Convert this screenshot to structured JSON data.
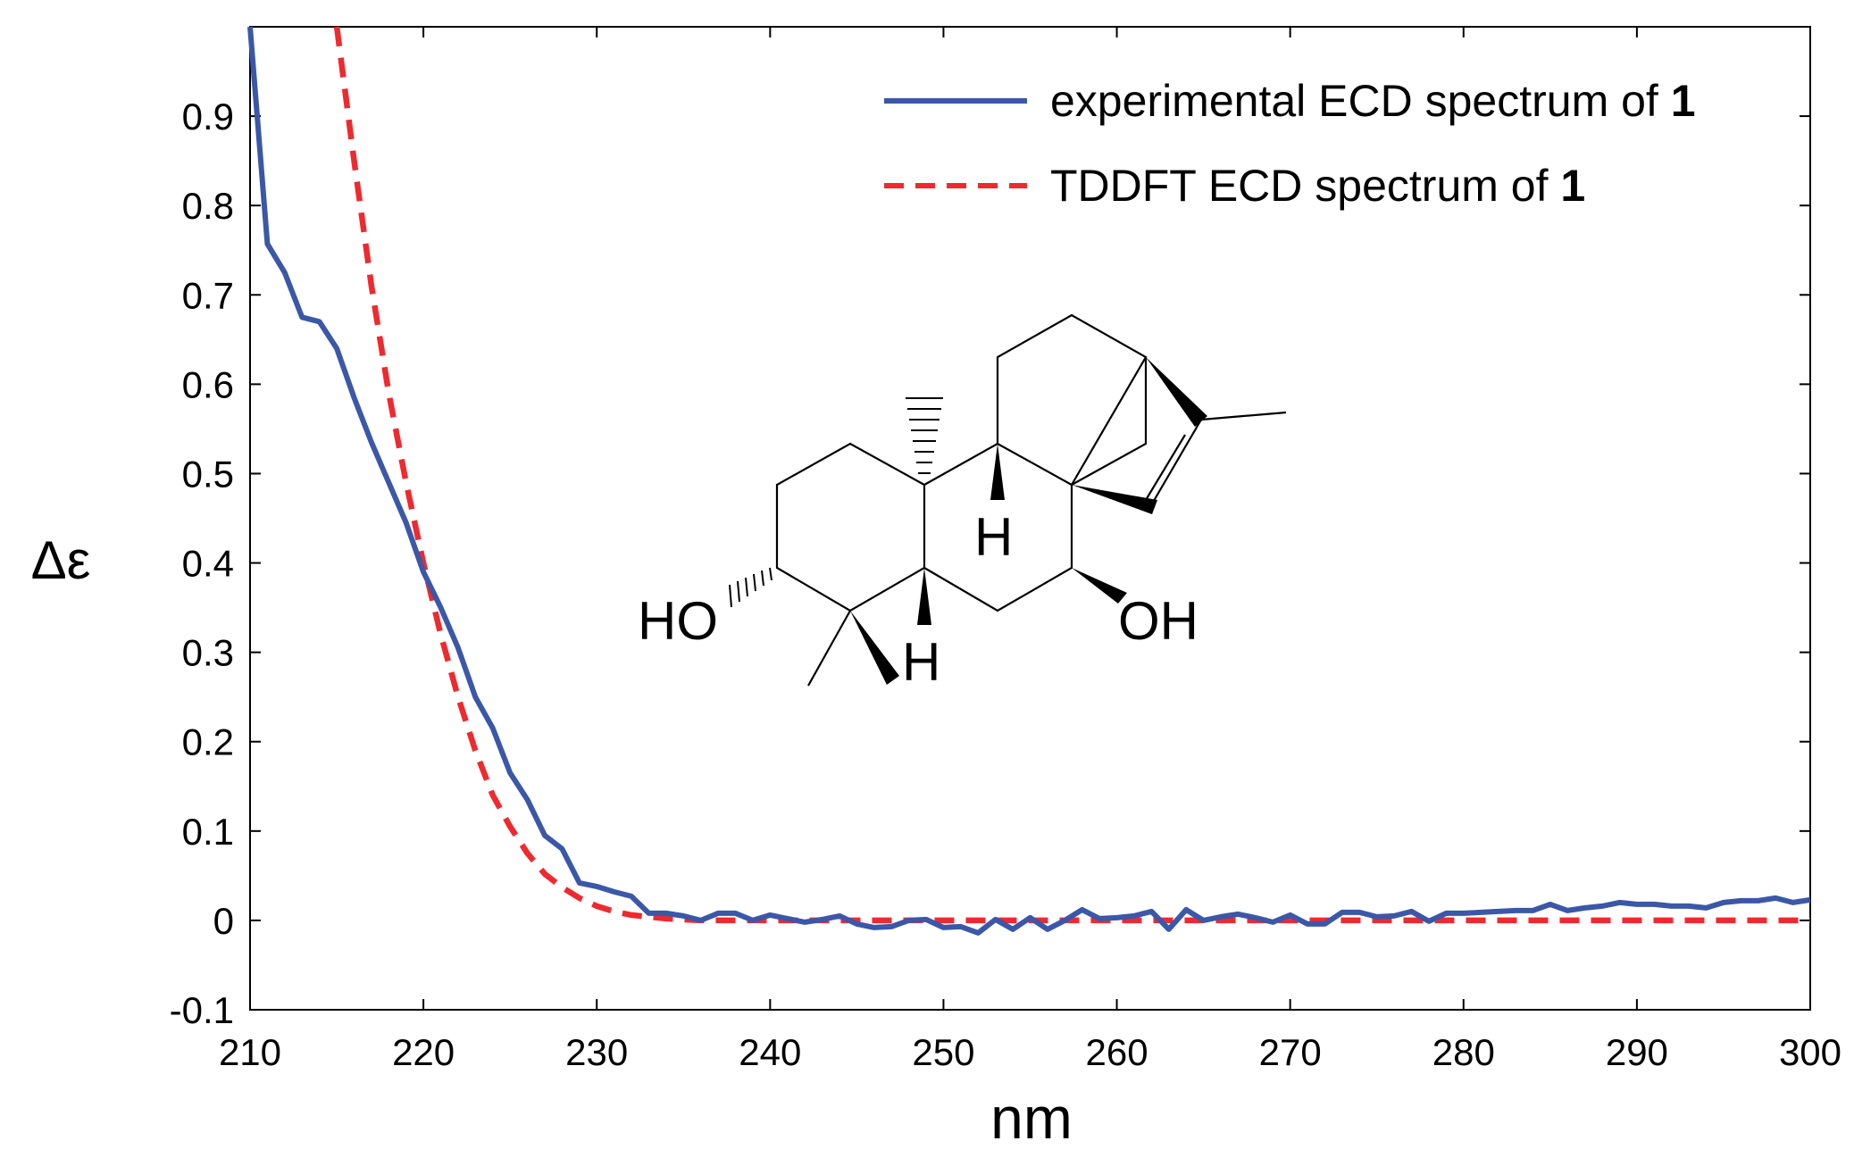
{
  "chart_data": {
    "type": "line",
    "xlabel": "nm",
    "ylabel": "Δε",
    "xlim": [
      210,
      300
    ],
    "ylim": [
      -0.1,
      1.0
    ],
    "x_ticks": [
      "210",
      "220",
      "230",
      "240",
      "250",
      "260",
      "270",
      "280",
      "290",
      "300"
    ],
    "y_ticks": [
      "-0.1",
      "0",
      "0.1",
      "0.2",
      "0.3",
      "0.4",
      "0.5",
      "0.6",
      "0.7",
      "0.8",
      "0.9"
    ],
    "grid": false,
    "legend_position": "top-right",
    "series": [
      {
        "name": "experimental ECD spectrum of 1",
        "name_prefix": "experimental ECD spectrum of ",
        "name_bold": "1",
        "color": "#3b57a8",
        "line_style": "solid",
        "x": [
          210,
          211,
          212,
          213,
          214,
          215,
          216,
          217,
          218,
          219,
          220,
          221,
          222,
          223,
          224,
          225,
          226,
          227,
          228,
          229,
          230,
          231,
          232,
          233,
          234,
          235,
          236,
          237,
          238,
          239,
          240,
          241,
          242,
          243,
          244,
          245,
          246,
          247,
          248,
          249,
          250,
          251,
          252,
          253,
          254,
          255,
          256,
          257,
          258,
          259,
          260,
          261,
          262,
          263,
          264,
          265,
          266,
          267,
          268,
          269,
          270,
          271,
          272,
          273,
          274,
          275,
          276,
          277,
          278,
          279,
          280,
          281,
          282,
          283,
          284,
          285,
          286,
          287,
          288,
          289,
          290,
          291,
          292,
          293,
          294,
          295,
          296,
          297,
          298,
          299,
          300
        ],
        "y": [
          1.0,
          0.757,
          0.725,
          0.675,
          0.67,
          0.64,
          0.585,
          0.535,
          0.49,
          0.445,
          0.39,
          0.35,
          0.305,
          0.25,
          0.215,
          0.165,
          0.135,
          0.095,
          0.08,
          0.042,
          0.038,
          0.032,
          0.027,
          0.008,
          0.008,
          0.005,
          0.0,
          0.008,
          0.008,
          0.0,
          0.006,
          0.002,
          -0.002,
          0.001,
          0.005,
          -0.004,
          -0.008,
          -0.007,
          0.0,
          0.001,
          -0.008,
          -0.007,
          -0.014,
          0.001,
          -0.01,
          0.003,
          -0.01,
          0.0,
          0.012,
          0.002,
          0.003,
          0.005,
          0.01,
          -0.01,
          0.012,
          0.0,
          0.004,
          0.007,
          0.003,
          -0.002,
          0.006,
          -0.004,
          -0.004,
          0.009,
          0.009,
          0.004,
          0.005,
          0.01,
          -0.001,
          0.008,
          0.008,
          0.009,
          0.01,
          0.011,
          0.011,
          0.018,
          0.011,
          0.014,
          0.016,
          0.02,
          0.018,
          0.018,
          0.016,
          0.016,
          0.014,
          0.02,
          0.022,
          0.022,
          0.025,
          0.02,
          0.023
        ]
      },
      {
        "name": "TDDFT ECD spectrum of 1",
        "name_prefix": "TDDFT ECD spectrum of ",
        "name_bold": "1",
        "color": "#ee2a2f",
        "line_style": "dashed",
        "x": [
          215,
          216,
          217,
          218,
          219,
          220,
          221,
          222,
          223,
          224,
          225,
          226,
          227,
          228,
          229,
          230,
          231,
          232,
          233,
          234,
          235,
          236,
          238,
          240,
          245,
          250,
          255,
          260,
          265,
          270,
          275,
          280,
          285,
          290,
          295,
          300
        ],
        "y": [
          1.0,
          0.85,
          0.71,
          0.59,
          0.49,
          0.4,
          0.32,
          0.25,
          0.19,
          0.14,
          0.105,
          0.075,
          0.052,
          0.037,
          0.025,
          0.016,
          0.01,
          0.006,
          0.004,
          0.002,
          0.001,
          0.0,
          0.0,
          0.0,
          0.0,
          0.0,
          0.0,
          0.0,
          0.0,
          0.0,
          0.0,
          0.0,
          0.0,
          0.0,
          0.0,
          0.0
        ]
      }
    ],
    "inset_labels": {
      "ho": "HO",
      "oh": "OH",
      "h_top": "H",
      "h_bottom": "H"
    }
  }
}
